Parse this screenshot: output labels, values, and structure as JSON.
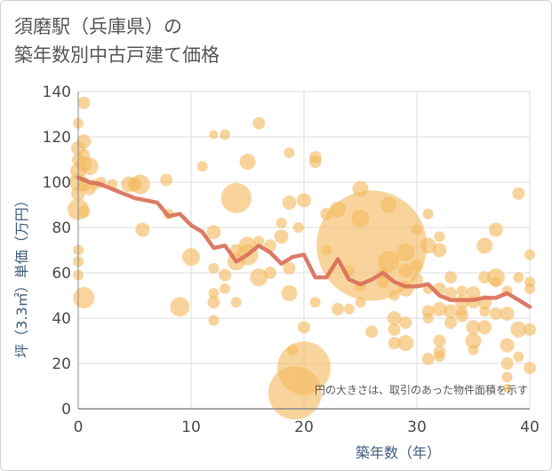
{
  "title": {
    "line1": "須磨駅（兵庫県）の",
    "line2": "築年数別中古戸建て価格"
  },
  "note": "円の大きさは、取引のあった物件面積を示す",
  "colors": {
    "bubble": "#f3b95f",
    "line": "#d9705a",
    "grid": "#dddddd",
    "axis": "#888888"
  },
  "chart_data": {
    "type": "scatter",
    "title": "須磨駅（兵庫県）の 築年数別中古戸建て価格",
    "xlabel": "築年数（年）",
    "ylabel": "坪（3.3㎡）単価（万円）",
    "xlim": [
      0,
      40
    ],
    "ylim": [
      0,
      140
    ],
    "xticks": [
      0,
      10,
      20,
      30,
      40
    ],
    "yticks": [
      0,
      20,
      40,
      60,
      80,
      100,
      120,
      140
    ],
    "grid": true,
    "size_legend": "円の大きさは、取引のあった物件面積を示す",
    "series": [
      {
        "type": "line",
        "x": [
          0,
          1,
          2,
          3,
          4,
          5,
          6,
          7,
          8,
          9,
          10,
          11,
          12,
          13,
          14,
          15,
          16,
          17,
          18,
          19,
          20,
          21,
          22,
          23,
          24,
          25,
          26,
          27,
          28,
          29,
          30,
          31,
          32,
          33,
          34,
          35,
          36,
          37,
          38,
          39,
          40
        ],
        "y": [
          102,
          100,
          99,
          97,
          95,
          93,
          92,
          91,
          85,
          86,
          81,
          78,
          71,
          72,
          65,
          68,
          72,
          69,
          64,
          67,
          68,
          58,
          58,
          66,
          57,
          55,
          57,
          60,
          56,
          54,
          54,
          55,
          50,
          48,
          48,
          48,
          49,
          49,
          51,
          48,
          45
        ]
      },
      {
        "type": "scatter",
        "points": [
          {
            "x": 0,
            "y": 126,
            "s": 6
          },
          {
            "x": 0,
            "y": 115,
            "s": 8
          },
          {
            "x": 0,
            "y": 110,
            "s": 7
          },
          {
            "x": 0,
            "y": 105,
            "s": 9
          },
          {
            "x": 0,
            "y": 100,
            "s": 10
          },
          {
            "x": 0,
            "y": 95,
            "s": 8
          },
          {
            "x": 0,
            "y": 88,
            "s": 12
          },
          {
            "x": 0,
            "y": 70,
            "s": 6
          },
          {
            "x": 0,
            "y": 65,
            "s": 6
          },
          {
            "x": 0,
            "y": 59,
            "s": 6
          },
          {
            "x": 0.5,
            "y": 135,
            "s": 7
          },
          {
            "x": 0.5,
            "y": 118,
            "s": 8
          },
          {
            "x": 0.5,
            "y": 112,
            "s": 7
          },
          {
            "x": 0.5,
            "y": 108,
            "s": 9
          },
          {
            "x": 0.5,
            "y": 99,
            "s": 8
          },
          {
            "x": 0.5,
            "y": 87,
            "s": 7
          },
          {
            "x": 0.5,
            "y": 49,
            "s": 12
          },
          {
            "x": 1,
            "y": 107,
            "s": 10
          },
          {
            "x": 1,
            "y": 97,
            "s": 7
          },
          {
            "x": 1.5,
            "y": 99,
            "s": 6
          },
          {
            "x": 2,
            "y": 100,
            "s": 6
          },
          {
            "x": 3,
            "y": 99,
            "s": 6
          },
          {
            "x": 4.5,
            "y": 99,
            "s": 9
          },
          {
            "x": 5,
            "y": 99,
            "s": 8
          },
          {
            "x": 5.5,
            "y": 99,
            "s": 11
          },
          {
            "x": 5.7,
            "y": 79,
            "s": 8
          },
          {
            "x": 7.8,
            "y": 101,
            "s": 7
          },
          {
            "x": 8,
            "y": 86,
            "s": 6
          },
          {
            "x": 9,
            "y": 45,
            "s": 11
          },
          {
            "x": 10,
            "y": 67,
            "s": 10
          },
          {
            "x": 11,
            "y": 107,
            "s": 6
          },
          {
            "x": 12,
            "y": 121,
            "s": 5
          },
          {
            "x": 12,
            "y": 78,
            "s": 8
          },
          {
            "x": 12,
            "y": 62,
            "s": 6
          },
          {
            "x": 12,
            "y": 51,
            "s": 6
          },
          {
            "x": 12,
            "y": 47,
            "s": 7
          },
          {
            "x": 12,
            "y": 39,
            "s": 6
          },
          {
            "x": 13,
            "y": 121,
            "s": 6
          },
          {
            "x": 13,
            "y": 59,
            "s": 7
          },
          {
            "x": 13,
            "y": 53,
            "s": 6
          },
          {
            "x": 14,
            "y": 93,
            "s": 17
          },
          {
            "x": 14,
            "y": 70,
            "s": 7
          },
          {
            "x": 14,
            "y": 65,
            "s": 10
          },
          {
            "x": 14,
            "y": 47,
            "s": 6
          },
          {
            "x": 15,
            "y": 109,
            "s": 9
          },
          {
            "x": 15,
            "y": 72,
            "s": 10
          },
          {
            "x": 15,
            "y": 68,
            "s": 12
          },
          {
            "x": 16,
            "y": 126,
            "s": 7
          },
          {
            "x": 16,
            "y": 74,
            "s": 6
          },
          {
            "x": 16,
            "y": 58,
            "s": 10
          },
          {
            "x": 17,
            "y": 72,
            "s": 7
          },
          {
            "x": 17,
            "y": 60,
            "s": 7
          },
          {
            "x": 18,
            "y": 82,
            "s": 6
          },
          {
            "x": 18,
            "y": 76,
            "s": 8
          },
          {
            "x": 18.7,
            "y": 113,
            "s": 6
          },
          {
            "x": 18.7,
            "y": 91,
            "s": 8
          },
          {
            "x": 18.7,
            "y": 62,
            "s": 7
          },
          {
            "x": 18.7,
            "y": 51,
            "s": 9
          },
          {
            "x": 19,
            "y": 26,
            "s": 6
          },
          {
            "x": 19.5,
            "y": 80,
            "s": 6
          },
          {
            "x": 20,
            "y": 92,
            "s": 8
          },
          {
            "x": 20,
            "y": 36,
            "s": 7
          },
          {
            "x": 20,
            "y": 18,
            "s": 30
          },
          {
            "x": 19.2,
            "y": 7,
            "s": 30
          },
          {
            "x": 21,
            "y": 111,
            "s": 7
          },
          {
            "x": 21,
            "y": 109,
            "s": 7
          },
          {
            "x": 21,
            "y": 47,
            "s": 6
          },
          {
            "x": 22,
            "y": 86,
            "s": 7
          },
          {
            "x": 22,
            "y": 70,
            "s": 6
          },
          {
            "x": 23,
            "y": 88,
            "s": 9
          },
          {
            "x": 23,
            "y": 44,
            "s": 7
          },
          {
            "x": 24,
            "y": 61,
            "s": 6
          },
          {
            "x": 24,
            "y": 44,
            "s": 6
          },
          {
            "x": 25,
            "y": 97,
            "s": 9
          },
          {
            "x": 25,
            "y": 84,
            "s": 10
          },
          {
            "x": 25,
            "y": 54,
            "s": 6
          },
          {
            "x": 25,
            "y": 47,
            "s": 6
          },
          {
            "x": 26,
            "y": 72,
            "s": 62
          },
          {
            "x": 26,
            "y": 34,
            "s": 7
          },
          {
            "x": 27,
            "y": 56,
            "s": 7
          },
          {
            "x": 27,
            "y": 60,
            "s": 6
          },
          {
            "x": 27.5,
            "y": 90,
            "s": 9
          },
          {
            "x": 27.5,
            "y": 65,
            "s": 12
          },
          {
            "x": 28,
            "y": 50,
            "s": 6
          },
          {
            "x": 28,
            "y": 40,
            "s": 8
          },
          {
            "x": 28,
            "y": 35,
            "s": 7
          },
          {
            "x": 28,
            "y": 29,
            "s": 7
          },
          {
            "x": 29,
            "y": 69,
            "s": 10
          },
          {
            "x": 29,
            "y": 61,
            "s": 8
          },
          {
            "x": 29,
            "y": 53,
            "s": 9
          },
          {
            "x": 29,
            "y": 38,
            "s": 7
          },
          {
            "x": 29,
            "y": 29,
            "s": 9
          },
          {
            "x": 30,
            "y": 79,
            "s": 6
          },
          {
            "x": 30,
            "y": 63,
            "s": 7
          },
          {
            "x": 30,
            "y": 57,
            "s": 7
          },
          {
            "x": 31,
            "y": 86,
            "s": 6
          },
          {
            "x": 31,
            "y": 72,
            "s": 9
          },
          {
            "x": 31,
            "y": 53,
            "s": 6
          },
          {
            "x": 31,
            "y": 43,
            "s": 7
          },
          {
            "x": 31,
            "y": 40,
            "s": 6
          },
          {
            "x": 31,
            "y": 22,
            "s": 7
          },
          {
            "x": 32,
            "y": 76,
            "s": 6
          },
          {
            "x": 32,
            "y": 70,
            "s": 8
          },
          {
            "x": 32,
            "y": 53,
            "s": 7
          },
          {
            "x": 32,
            "y": 44,
            "s": 8
          },
          {
            "x": 32,
            "y": 30,
            "s": 7
          },
          {
            "x": 32,
            "y": 25,
            "s": 7
          },
          {
            "x": 32,
            "y": 23,
            "s": 6
          },
          {
            "x": 33,
            "y": 58,
            "s": 7
          },
          {
            "x": 33,
            "y": 51,
            "s": 7
          },
          {
            "x": 33,
            "y": 43,
            "s": 8
          },
          {
            "x": 33,
            "y": 38,
            "s": 7
          },
          {
            "x": 34,
            "y": 52,
            "s": 6
          },
          {
            "x": 34,
            "y": 47,
            "s": 8
          },
          {
            "x": 34,
            "y": 43,
            "s": 6
          },
          {
            "x": 34,
            "y": 41,
            "s": 7
          },
          {
            "x": 35,
            "y": 51,
            "s": 8
          },
          {
            "x": 35,
            "y": 47,
            "s": 7
          },
          {
            "x": 35,
            "y": 36,
            "s": 8
          },
          {
            "x": 35,
            "y": 30,
            "s": 9
          },
          {
            "x": 35,
            "y": 26,
            "s": 6
          },
          {
            "x": 36,
            "y": 72,
            "s": 9
          },
          {
            "x": 36,
            "y": 58,
            "s": 7
          },
          {
            "x": 36,
            "y": 47,
            "s": 8
          },
          {
            "x": 36,
            "y": 43,
            "s": 6
          },
          {
            "x": 36,
            "y": 36,
            "s": 8
          },
          {
            "x": 37,
            "y": 79,
            "s": 8
          },
          {
            "x": 37,
            "y": 58,
            "s": 10
          },
          {
            "x": 37,
            "y": 56,
            "s": 6
          },
          {
            "x": 37,
            "y": 42,
            "s": 7
          },
          {
            "x": 38,
            "y": 52,
            "s": 6
          },
          {
            "x": 38,
            "y": 42,
            "s": 8
          },
          {
            "x": 38,
            "y": 28,
            "s": 8
          },
          {
            "x": 38,
            "y": 20,
            "s": 7
          },
          {
            "x": 38,
            "y": 14,
            "s": 6
          },
          {
            "x": 38,
            "y": 9,
            "s": 5
          },
          {
            "x": 39,
            "y": 95,
            "s": 7
          },
          {
            "x": 39,
            "y": 58,
            "s": 6
          },
          {
            "x": 39,
            "y": 35,
            "s": 9
          },
          {
            "x": 39,
            "y": 23,
            "s": 6
          },
          {
            "x": 40,
            "y": 68,
            "s": 6
          },
          {
            "x": 40,
            "y": 56,
            "s": 6
          },
          {
            "x": 40,
            "y": 53,
            "s": 6
          },
          {
            "x": 40,
            "y": 35,
            "s": 7
          },
          {
            "x": 40,
            "y": 18,
            "s": 7
          }
        ]
      }
    ]
  }
}
